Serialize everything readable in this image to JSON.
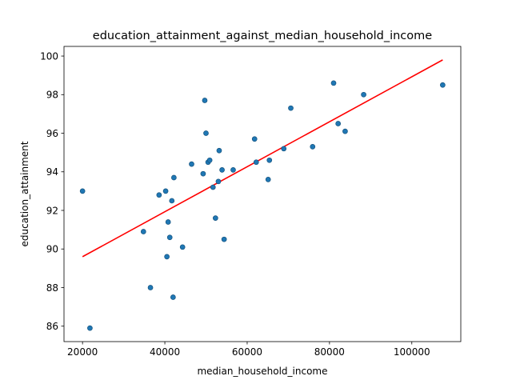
{
  "chart_data": {
    "type": "scatter",
    "title": "education_attainment_against_median_household_income",
    "xlabel": "median_household_income",
    "ylabel": "education_attainment",
    "xlim": [
      15500,
      111900
    ],
    "ylim": [
      85.2,
      100.5
    ],
    "xticks": [
      20000,
      40000,
      60000,
      80000,
      100000
    ],
    "yticks": [
      86,
      88,
      90,
      92,
      94,
      96,
      98,
      100
    ],
    "grid": false,
    "legend": "none",
    "marker_color": "#1f77b4",
    "fit_line_color": "#ff0000",
    "fit_line": {
      "x": [
        20000,
        107500
      ],
      "y": [
        89.6,
        99.8
      ]
    },
    "points": [
      {
        "x": 20000,
        "y": 93.0
      },
      {
        "x": 21800,
        "y": 85.9
      },
      {
        "x": 34800,
        "y": 90.9
      },
      {
        "x": 36500,
        "y": 88.0
      },
      {
        "x": 38600,
        "y": 92.8
      },
      {
        "x": 40200,
        "y": 93.0
      },
      {
        "x": 40500,
        "y": 89.6
      },
      {
        "x": 40800,
        "y": 91.4
      },
      {
        "x": 41200,
        "y": 90.6
      },
      {
        "x": 41700,
        "y": 92.5
      },
      {
        "x": 42000,
        "y": 87.5
      },
      {
        "x": 42200,
        "y": 93.7
      },
      {
        "x": 44300,
        "y": 90.1
      },
      {
        "x": 46500,
        "y": 94.4
      },
      {
        "x": 49300,
        "y": 93.9
      },
      {
        "x": 49700,
        "y": 97.7
      },
      {
        "x": 50000,
        "y": 96.0
      },
      {
        "x": 50500,
        "y": 94.5
      },
      {
        "x": 50900,
        "y": 94.6
      },
      {
        "x": 51700,
        "y": 93.2
      },
      {
        "x": 52300,
        "y": 91.6
      },
      {
        "x": 53000,
        "y": 93.5
      },
      {
        "x": 53200,
        "y": 95.1
      },
      {
        "x": 53900,
        "y": 94.1
      },
      {
        "x": 54400,
        "y": 90.5
      },
      {
        "x": 56600,
        "y": 94.1
      },
      {
        "x": 61800,
        "y": 95.7
      },
      {
        "x": 62200,
        "y": 94.5
      },
      {
        "x": 65100,
        "y": 93.6
      },
      {
        "x": 65400,
        "y": 94.6
      },
      {
        "x": 68900,
        "y": 95.2
      },
      {
        "x": 70600,
        "y": 97.3
      },
      {
        "x": 75900,
        "y": 95.3
      },
      {
        "x": 81000,
        "y": 98.6
      },
      {
        "x": 82100,
        "y": 96.5
      },
      {
        "x": 83800,
        "y": 96.1
      },
      {
        "x": 88300,
        "y": 98.0
      },
      {
        "x": 107500,
        "y": 98.5
      }
    ]
  }
}
